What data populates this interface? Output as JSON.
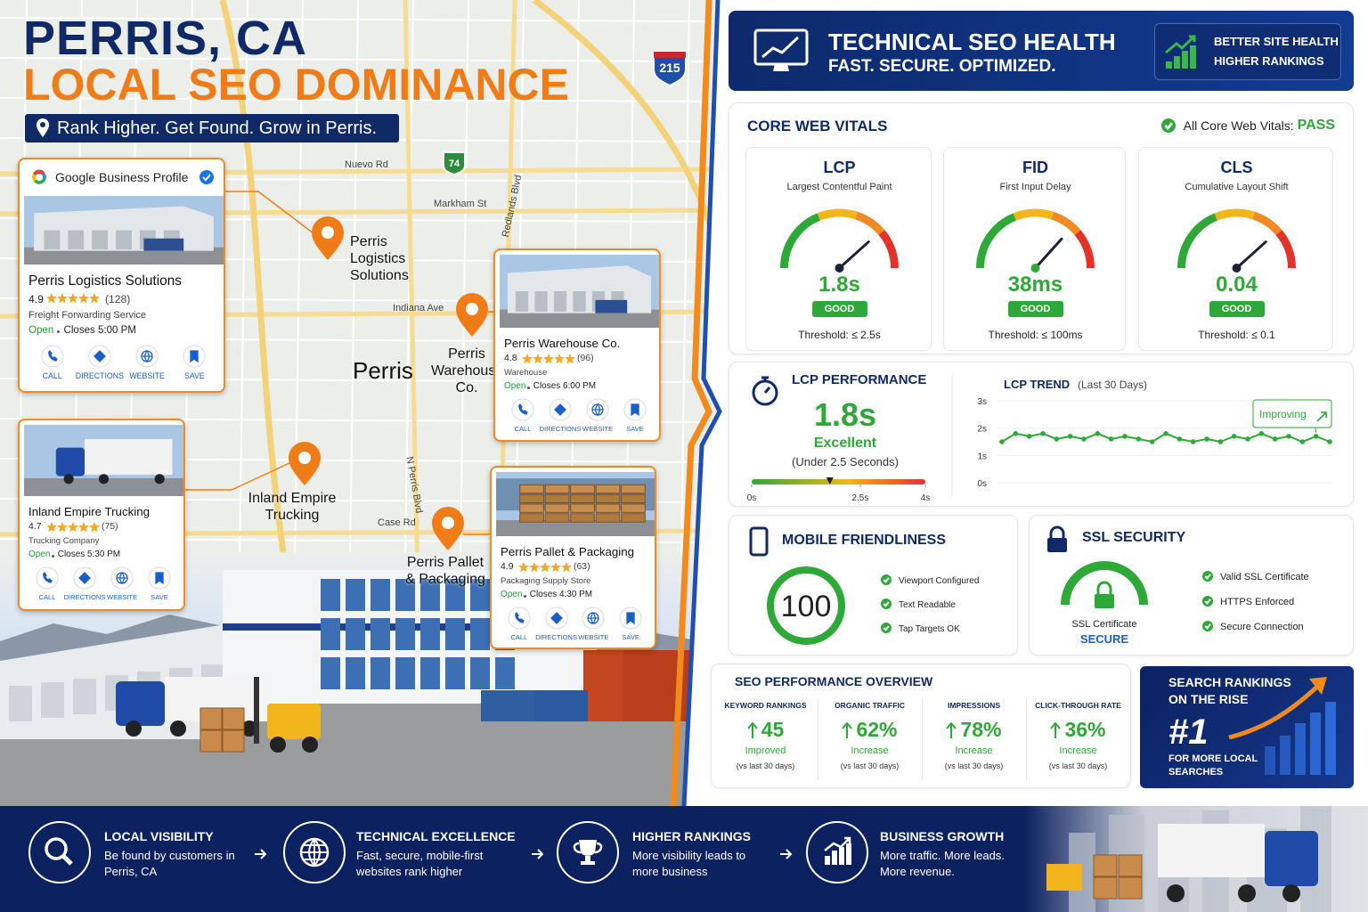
{
  "header": {
    "title_line1": "PERRIS, CA",
    "title_line2": "LOCAL SEO DOMINANCE",
    "tagline": "Rank Higher. Get Found. Grow in Perris."
  },
  "map": {
    "streets": [
      "Nuevo Rd",
      "Markham St",
      "Indiana Ave",
      "Case Rd",
      "Redlands Blvd",
      "N Perris Blvd"
    ],
    "city": "Perris",
    "shields": [
      "215",
      "74"
    ]
  },
  "google_business_profile_label": "Google Business Profile",
  "business_actions": [
    "CALL",
    "DIRECTIONS",
    "WEBSITE",
    "SAVE"
  ],
  "businesses": [
    {
      "name": "Perris Logistics Solutions",
      "rating": 4.9,
      "reviews": "(128)",
      "category": "Freight Forwarding Service",
      "status": "Open",
      "hours": "Closes 5:00 PM"
    },
    {
      "name": "Perris Warehouse Co.",
      "rating": 4.8,
      "reviews": "(96)",
      "category": "Warehouse",
      "status": "Open",
      "hours": "Closes 6:00 PM"
    },
    {
      "name": "Inland Empire Trucking",
      "rating": 4.7,
      "reviews": "(75)",
      "category": "Trucking Company",
      "status": "Open",
      "hours": "Closes 5:30 PM"
    },
    {
      "name": "Perris Pallet & Packaging",
      "rating": 4.9,
      "reviews": "(63)",
      "category": "Packaging Supply Store",
      "status": "Open",
      "hours": "Closes 4:30 PM"
    }
  ],
  "seo_health": {
    "title": "TECHNICAL SEO HEALTH",
    "subtitle": "FAST. SECURE. OPTIMIZED.",
    "badge": [
      "BETTER SITE HEALTH",
      "HIGHER RANKINGS"
    ]
  },
  "core_web_vitals": {
    "title": "CORE WEB VITALS",
    "status_label": "All Core Web Vitals:",
    "status": "PASS",
    "metrics": [
      {
        "name": "LCP",
        "full_name": "Largest Contentful Paint",
        "value": "1.8s",
        "rating": "GOOD",
        "threshold": "Threshold: ≤ 2.5s"
      },
      {
        "name": "FID",
        "full_name": "First Input Delay",
        "value": "38ms",
        "rating": "GOOD",
        "threshold": "Threshold: ≤ 100ms"
      },
      {
        "name": "CLS",
        "full_name": "Cumulative Layout Shift",
        "value": "0.04",
        "rating": "GOOD",
        "threshold": "Threshold: ≤ 0.1"
      }
    ]
  },
  "lcp_performance": {
    "title": "LCP PERFORMANCE",
    "value": "1.8s",
    "rating": "Excellent",
    "note": "(Under 2.5 Seconds)",
    "scale": {
      "xlim": [
        0,
        4
      ],
      "xticks": [
        {
          "value": 0,
          "label": "0s"
        },
        {
          "value": 2.5,
          "label": "2.5s"
        },
        {
          "value": 4,
          "label": "4s"
        }
      ],
      "marker": 1.8
    }
  },
  "lcp_trend": {
    "title": "LCP TREND",
    "period": "(Last 30 Days)",
    "annotation": "Improving",
    "ylim": [
      0,
      3
    ],
    "yticks": [
      {
        "value": 0,
        "label": "0s"
      },
      {
        "value": 1,
        "label": "1s"
      },
      {
        "value": 2,
        "label": "2s"
      },
      {
        "value": 3,
        "label": "3s"
      }
    ],
    "values": [
      1.5,
      1.8,
      1.7,
      1.8,
      1.6,
      1.7,
      1.6,
      1.8,
      1.6,
      1.7,
      1.6,
      1.5,
      1.8,
      1.6,
      1.5,
      1.6,
      1.5,
      1.7,
      1.6,
      1.8,
      1.6,
      1.7,
      1.5,
      1.7,
      1.5
    ]
  },
  "mobile": {
    "title": "MOBILE FRIENDLINESS",
    "score": 100,
    "checks": [
      "Viewport Configured",
      "Text Readable",
      "Tap Targets OK"
    ]
  },
  "ssl": {
    "title": "SSL SECURITY",
    "caption": "SSL Certificate",
    "status": "SECURE",
    "checks": [
      "Valid SSL Certificate",
      "HTTPS Enforced",
      "Secure Connection"
    ]
  },
  "seo_overview": {
    "title": "SEO PERFORMANCE OVERVIEW",
    "metrics": [
      {
        "label": "KEYWORD RANKINGS",
        "value": "45",
        "change": "Improved",
        "period": "(vs last 30 days)"
      },
      {
        "label": "ORGANIC TRAFFIC",
        "value": "62%",
        "change": "Increase",
        "period": "(vs last 30 days)"
      },
      {
        "label": "IMPRESSIONS",
        "value": "78%",
        "change": "Increase",
        "period": "(vs last 30 days)"
      },
      {
        "label": "CLICK-THROUGH RATE",
        "value": "36%",
        "change": "Increase",
        "period": "(vs last 30 days)"
      }
    ]
  },
  "rankings": {
    "title": "SEARCH RANKINGS ON THE RISE",
    "rank": "#1",
    "caption": "FOR MORE LOCAL SEARCHES"
  },
  "footer": {
    "steps": [
      {
        "title": "LOCAL VISIBILITY",
        "text": "Be found by customers in Perris, CA"
      },
      {
        "title": "TECHNICAL EXCELLENCE",
        "text": "Fast, secure, mobile-first websites rank higher"
      },
      {
        "title": "HIGHER RANKINGS",
        "text": "More visibility leads to more business"
      },
      {
        "title": "BUSINESS GROWTH",
        "text": "More traffic. More leads. More revenue."
      }
    ]
  }
}
